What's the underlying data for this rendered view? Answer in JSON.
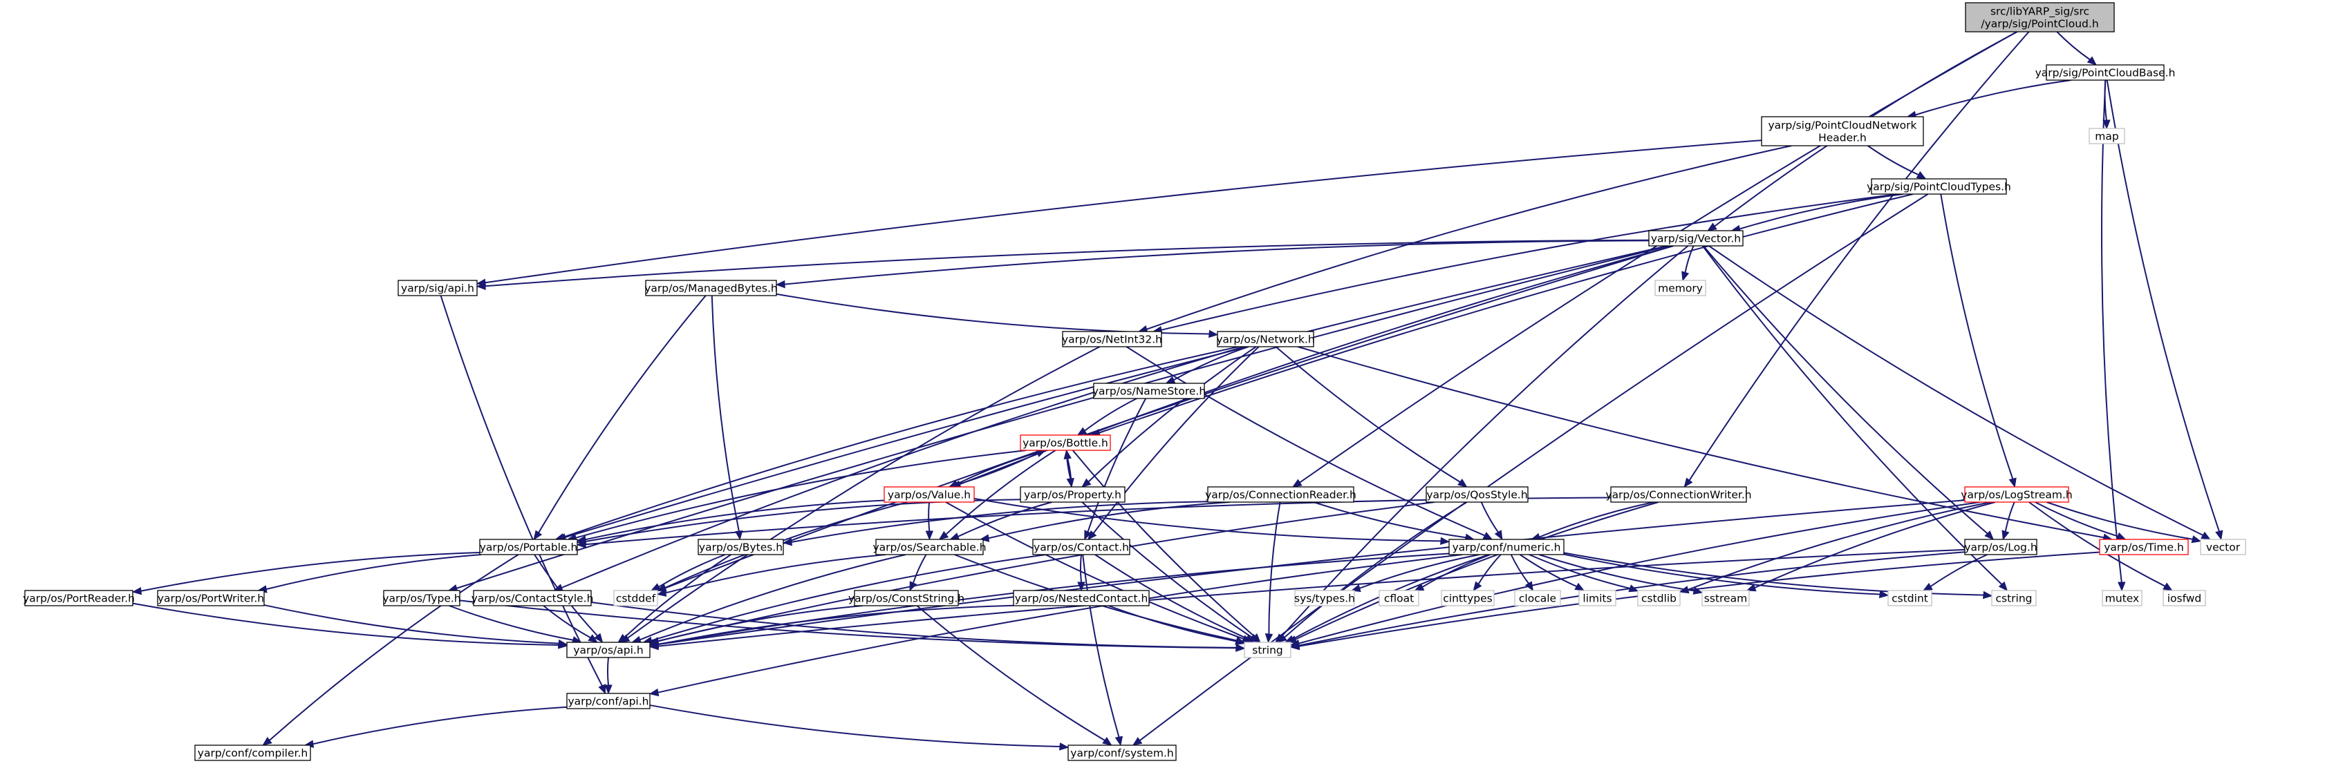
{
  "colors": {
    "edge": "#191970",
    "node_border": "#000000",
    "system_border": "#bfbfbf",
    "root_fill": "#bfbfbf",
    "truncated_border": "#ff0000"
  },
  "nodes": [
    {
      "id": "root",
      "lines": [
        "src/libYARP_sig/src",
        "/yarp/sig/PointCloud.h"
      ],
      "style": "root"
    },
    {
      "id": "pcbase",
      "lines": [
        "yarp/sig/PointCloudBase.h"
      ],
      "style": "normal"
    },
    {
      "id": "pcnet",
      "lines": [
        "yarp/sig/PointCloudNetwork",
        "Header.h"
      ],
      "style": "normal"
    },
    {
      "id": "map",
      "lines": [
        "map"
      ],
      "style": "system"
    },
    {
      "id": "pctypes",
      "lines": [
        "yarp/sig/PointCloudTypes.h"
      ],
      "style": "normal"
    },
    {
      "id": "vector_h",
      "lines": [
        "yarp/sig/Vector.h"
      ],
      "style": "normal"
    },
    {
      "id": "sigapi",
      "lines": [
        "yarp/sig/api.h"
      ],
      "style": "normal"
    },
    {
      "id": "managed",
      "lines": [
        "yarp/os/ManagedBytes.h"
      ],
      "style": "normal"
    },
    {
      "id": "memory",
      "lines": [
        "memory"
      ],
      "style": "system"
    },
    {
      "id": "netint",
      "lines": [
        "yarp/os/NetInt32.h"
      ],
      "style": "normal"
    },
    {
      "id": "network",
      "lines": [
        "yarp/os/Network.h"
      ],
      "style": "normal"
    },
    {
      "id": "namestore",
      "lines": [
        "yarp/os/NameStore.h"
      ],
      "style": "normal"
    },
    {
      "id": "bottle",
      "lines": [
        "yarp/os/Bottle.h"
      ],
      "style": "truncated"
    },
    {
      "id": "value",
      "lines": [
        "yarp/os/Value.h"
      ],
      "style": "truncated"
    },
    {
      "id": "property",
      "lines": [
        "yarp/os/Property.h"
      ],
      "style": "normal"
    },
    {
      "id": "connreader",
      "lines": [
        "yarp/os/ConnectionReader.h"
      ],
      "style": "normal"
    },
    {
      "id": "qosstyle",
      "lines": [
        "yarp/os/QosStyle.h"
      ],
      "style": "normal"
    },
    {
      "id": "connwriter",
      "lines": [
        "yarp/os/ConnectionWriter.h"
      ],
      "style": "normal"
    },
    {
      "id": "logstream",
      "lines": [
        "yarp/os/LogStream.h"
      ],
      "style": "truncated"
    },
    {
      "id": "portable",
      "lines": [
        "yarp/os/Portable.h"
      ],
      "style": "normal"
    },
    {
      "id": "bytes",
      "lines": [
        "yarp/os/Bytes.h"
      ],
      "style": "normal"
    },
    {
      "id": "searchable",
      "lines": [
        "yarp/os/Searchable.h"
      ],
      "style": "normal"
    },
    {
      "id": "contact",
      "lines": [
        "yarp/os/Contact.h"
      ],
      "style": "normal"
    },
    {
      "id": "numeric",
      "lines": [
        "yarp/conf/numeric.h"
      ],
      "style": "normal"
    },
    {
      "id": "log",
      "lines": [
        "yarp/os/Log.h"
      ],
      "style": "normal"
    },
    {
      "id": "time",
      "lines": [
        "yarp/os/Time.h"
      ],
      "style": "truncated"
    },
    {
      "id": "vector",
      "lines": [
        "vector"
      ],
      "style": "system"
    },
    {
      "id": "portreader",
      "lines": [
        "yarp/os/PortReader.h"
      ],
      "style": "normal"
    },
    {
      "id": "portwriter",
      "lines": [
        "yarp/os/PortWriter.h"
      ],
      "style": "normal"
    },
    {
      "id": "type",
      "lines": [
        "yarp/os/Type.h"
      ],
      "style": "normal"
    },
    {
      "id": "contactstyle",
      "lines": [
        "yarp/os/ContactStyle.h"
      ],
      "style": "normal"
    },
    {
      "id": "cstddef",
      "lines": [
        "cstddef"
      ],
      "style": "system"
    },
    {
      "id": "conststring",
      "lines": [
        "yarp/os/ConstString.h"
      ],
      "style": "normal"
    },
    {
      "id": "nestedcontact",
      "lines": [
        "yarp/os/NestedContact.h"
      ],
      "style": "normal"
    },
    {
      "id": "systypes",
      "lines": [
        "sys/types.h"
      ],
      "style": "system"
    },
    {
      "id": "cfloat",
      "lines": [
        "cfloat"
      ],
      "style": "system"
    },
    {
      "id": "cinttypes",
      "lines": [
        "cinttypes"
      ],
      "style": "system"
    },
    {
      "id": "clocale",
      "lines": [
        "clocale"
      ],
      "style": "system"
    },
    {
      "id": "limits",
      "lines": [
        "limits"
      ],
      "style": "system"
    },
    {
      "id": "cstdlib",
      "lines": [
        "cstdlib"
      ],
      "style": "system"
    },
    {
      "id": "sstream",
      "lines": [
        "sstream"
      ],
      "style": "system"
    },
    {
      "id": "cstdint",
      "lines": [
        "cstdint"
      ],
      "style": "system"
    },
    {
      "id": "cstring",
      "lines": [
        "cstring"
      ],
      "style": "system"
    },
    {
      "id": "mutex",
      "lines": [
        "mutex"
      ],
      "style": "system"
    },
    {
      "id": "iosfwd",
      "lines": [
        "iosfwd"
      ],
      "style": "system"
    },
    {
      "id": "osapi",
      "lines": [
        "yarp/os/api.h"
      ],
      "style": "normal"
    },
    {
      "id": "string",
      "lines": [
        "string"
      ],
      "style": "system"
    },
    {
      "id": "confapi",
      "lines": [
        "yarp/conf/api.h"
      ],
      "style": "normal"
    },
    {
      "id": "compiler",
      "lines": [
        "yarp/conf/compiler.h"
      ],
      "style": "normal"
    },
    {
      "id": "system",
      "lines": [
        "yarp/conf/system.h"
      ],
      "style": "normal"
    }
  ],
  "edges": [
    [
      "root",
      "pcbase"
    ],
    [
      "root",
      "vector_h"
    ],
    [
      "root",
      "connreader"
    ],
    [
      "root",
      "connwriter"
    ],
    [
      "pcbase",
      "pcnet"
    ],
    [
      "pcbase",
      "map"
    ],
    [
      "pcbase",
      "vector"
    ],
    [
      "pcbase",
      "mutex"
    ],
    [
      "pcnet",
      "pctypes"
    ],
    [
      "pcnet",
      "sigapi"
    ],
    [
      "pcnet",
      "netint"
    ],
    [
      "pctypes",
      "vector_h"
    ],
    [
      "pctypes",
      "netint"
    ],
    [
      "pctypes",
      "bottle"
    ],
    [
      "pctypes",
      "logstream"
    ],
    [
      "pctypes",
      "system"
    ],
    [
      "vector_h",
      "sigapi"
    ],
    [
      "vector_h",
      "managed"
    ],
    [
      "vector_h",
      "memory"
    ],
    [
      "vector_h",
      "portable"
    ],
    [
      "vector_h",
      "type"
    ],
    [
      "vector_h",
      "cstddef"
    ],
    [
      "vector_h",
      "log"
    ],
    [
      "vector_h",
      "vector"
    ],
    [
      "vector_h",
      "string"
    ],
    [
      "vector_h",
      "cstring"
    ],
    [
      "vector_h",
      "value"
    ],
    [
      "sigapi",
      "confapi"
    ],
    [
      "managed",
      "portable"
    ],
    [
      "managed",
      "bytes"
    ],
    [
      "managed",
      "network"
    ],
    [
      "netint",
      "numeric"
    ],
    [
      "netint",
      "osapi"
    ],
    [
      "network",
      "namestore"
    ],
    [
      "network",
      "portable"
    ],
    [
      "network",
      "contactstyle"
    ],
    [
      "network",
      "contact"
    ],
    [
      "network",
      "property"
    ],
    [
      "network",
      "qosstyle"
    ],
    [
      "network",
      "time"
    ],
    [
      "namestore",
      "bottle"
    ],
    [
      "namestore",
      "contact"
    ],
    [
      "bottle",
      "value"
    ],
    [
      "bottle",
      "property"
    ],
    [
      "bottle",
      "portable"
    ],
    [
      "bottle",
      "searchable"
    ],
    [
      "bottle",
      "string"
    ],
    [
      "value",
      "bottle"
    ],
    [
      "value",
      "searchable"
    ],
    [
      "value",
      "portable"
    ],
    [
      "value",
      "numeric"
    ],
    [
      "value",
      "cstddef"
    ],
    [
      "value",
      "string"
    ],
    [
      "property",
      "bottle"
    ],
    [
      "property",
      "searchable"
    ],
    [
      "property",
      "portable"
    ],
    [
      "property",
      "string"
    ],
    [
      "connreader",
      "bytes"
    ],
    [
      "connreader",
      "searchable"
    ],
    [
      "connreader",
      "numeric"
    ],
    [
      "connreader",
      "string"
    ],
    [
      "qosstyle",
      "numeric"
    ],
    [
      "qosstyle",
      "osapi"
    ],
    [
      "qosstyle",
      "string"
    ],
    [
      "connwriter",
      "numeric"
    ],
    [
      "connwriter",
      "portable"
    ],
    [
      "connwriter",
      "string"
    ],
    [
      "logstream",
      "log"
    ],
    [
      "logstream",
      "time"
    ],
    [
      "logstream",
      "vector"
    ],
    [
      "logstream",
      "osapi"
    ],
    [
      "logstream",
      "cstdlib"
    ],
    [
      "logstream",
      "sstream"
    ],
    [
      "logstream",
      "string"
    ],
    [
      "logstream",
      "iosfwd"
    ],
    [
      "portable",
      "portreader"
    ],
    [
      "portable",
      "portwriter"
    ],
    [
      "portable",
      "osapi"
    ],
    [
      "portable",
      "compiler"
    ],
    [
      "bytes",
      "cstddef"
    ],
    [
      "bytes",
      "osapi"
    ],
    [
      "searchable",
      "conststring"
    ],
    [
      "searchable",
      "osapi"
    ],
    [
      "searchable",
      "string"
    ],
    [
      "searchable",
      "cstddef"
    ],
    [
      "contact",
      "nestedcontact"
    ],
    [
      "contact",
      "osapi"
    ],
    [
      "contact",
      "string"
    ],
    [
      "contact",
      "system"
    ],
    [
      "numeric",
      "systypes"
    ],
    [
      "numeric",
      "cfloat"
    ],
    [
      "numeric",
      "cinttypes"
    ],
    [
      "numeric",
      "clocale"
    ],
    [
      "numeric",
      "limits"
    ],
    [
      "numeric",
      "cstdlib"
    ],
    [
      "numeric",
      "sstream"
    ],
    [
      "numeric",
      "cstdint"
    ],
    [
      "numeric",
      "cstring"
    ],
    [
      "numeric",
      "string"
    ],
    [
      "numeric",
      "confapi"
    ],
    [
      "numeric",
      "osapi"
    ],
    [
      "log",
      "cstdint"
    ],
    [
      "log",
      "osapi"
    ],
    [
      "log",
      "string"
    ],
    [
      "time",
      "string"
    ],
    [
      "portreader",
      "osapi"
    ],
    [
      "portwriter",
      "osapi"
    ],
    [
      "type",
      "osapi"
    ],
    [
      "type",
      "string"
    ],
    [
      "contactstyle",
      "osapi"
    ],
    [
      "contactstyle",
      "string"
    ],
    [
      "conststring",
      "osapi"
    ],
    [
      "conststring",
      "system"
    ],
    [
      "nestedcontact",
      "osapi"
    ],
    [
      "nestedcontact",
      "string"
    ],
    [
      "osapi",
      "confapi"
    ],
    [
      "confapi",
      "compiler"
    ],
    [
      "confapi",
      "system"
    ]
  ]
}
